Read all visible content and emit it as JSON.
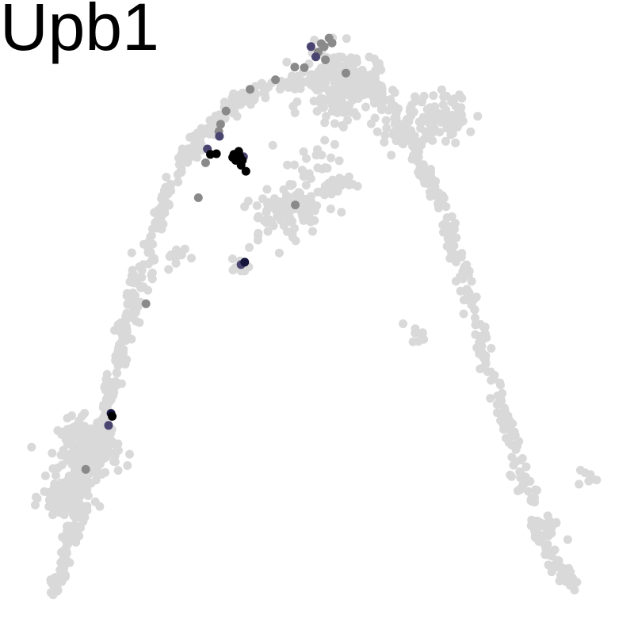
{
  "chart_data": {
    "type": "scatter",
    "title": "Upb1",
    "xlabel": "",
    "ylabel": "",
    "axes_visible": false,
    "grid": false,
    "legend": "none",
    "colors": {
      "background_cells": "#d9d9d9",
      "low_expression": "#8a8a8a",
      "mid_expression": "#4a4470",
      "high_expression": "#000000",
      "dark_blue_expression": "#14143c"
    },
    "xlim": [
      0,
      1
    ],
    "ylim": [
      0,
      1
    ],
    "background_trajectory": {
      "path": [
        [
          0.061,
          0.035
        ],
        [
          0.078,
          0.085
        ],
        [
          0.09,
          0.14
        ],
        [
          0.105,
          0.2
        ],
        [
          0.122,
          0.26
        ],
        [
          0.142,
          0.32
        ],
        [
          0.16,
          0.38
        ],
        [
          0.175,
          0.44
        ],
        [
          0.19,
          0.5
        ],
        [
          0.205,
          0.56
        ],
        [
          0.222,
          0.62
        ],
        [
          0.245,
          0.69
        ],
        [
          0.27,
          0.745
        ],
        [
          0.3,
          0.79
        ],
        [
          0.335,
          0.83
        ],
        [
          0.375,
          0.86
        ],
        [
          0.42,
          0.88
        ],
        [
          0.465,
          0.892
        ],
        [
          0.51,
          0.9
        ],
        [
          0.555,
          0.905
        ],
        [
          0.595,
          0.88
        ],
        [
          0.625,
          0.845
        ],
        [
          0.655,
          0.79
        ],
        [
          0.69,
          0.72
        ],
        [
          0.72,
          0.64
        ],
        [
          0.745,
          0.56
        ],
        [
          0.768,
          0.48
        ],
        [
          0.79,
          0.4
        ],
        [
          0.815,
          0.32
        ],
        [
          0.84,
          0.24
        ],
        [
          0.865,
          0.16
        ],
        [
          0.89,
          0.09
        ],
        [
          0.93,
          0.055
        ]
      ],
      "clusters": [
        {
          "x": 0.12,
          "y": 0.28,
          "sd": 0.025,
          "n": 160
        },
        {
          "x": 0.085,
          "y": 0.2,
          "sd": 0.02,
          "n": 110
        },
        {
          "x": 0.54,
          "y": 0.885,
          "sd": 0.03,
          "n": 200
        },
        {
          "x": 0.66,
          "y": 0.815,
          "sd": 0.025,
          "n": 70
        },
        {
          "x": 0.725,
          "y": 0.835,
          "sd": 0.02,
          "n": 40
        },
        {
          "x": 0.5,
          "y": 0.73,
          "sd": 0.03,
          "n": 60
        },
        {
          "x": 0.47,
          "y": 0.68,
          "sd": 0.02,
          "n": 40
        },
        {
          "x": 0.43,
          "y": 0.67,
          "sd": 0.025,
          "n": 40
        },
        {
          "x": 0.375,
          "y": 0.581,
          "sd": 0.008,
          "n": 12
        },
        {
          "x": 0.27,
          "y": 0.6,
          "sd": 0.01,
          "n": 12
        },
        {
          "x": 0.888,
          "y": 0.152,
          "sd": 0.01,
          "n": 12
        },
        {
          "x": 0.95,
          "y": 0.235,
          "sd": 0.008,
          "n": 8
        },
        {
          "x": 0.67,
          "y": 0.472,
          "sd": 0.008,
          "n": 8
        }
      ]
    },
    "expressing_cells": [
      {
        "x": 0.362,
        "y": 0.77,
        "level": "high"
      },
      {
        "x": 0.368,
        "y": 0.763,
        "level": "high"
      },
      {
        "x": 0.372,
        "y": 0.767,
        "level": "high"
      },
      {
        "x": 0.365,
        "y": 0.76,
        "level": "high"
      },
      {
        "x": 0.37,
        "y": 0.775,
        "level": "high"
      },
      {
        "x": 0.376,
        "y": 0.76,
        "level": "high"
      },
      {
        "x": 0.36,
        "y": 0.765,
        "level": "high"
      },
      {
        "x": 0.374,
        "y": 0.752,
        "level": "high"
      },
      {
        "x": 0.382,
        "y": 0.742,
        "level": "high"
      },
      {
        "x": 0.333,
        "y": 0.771,
        "level": "high"
      },
      {
        "x": 0.323,
        "y": 0.77,
        "level": "high"
      },
      {
        "x": 0.378,
        "y": 0.766,
        "level": "mid"
      },
      {
        "x": 0.318,
        "y": 0.779,
        "level": "mid"
      },
      {
        "x": 0.338,
        "y": 0.8,
        "level": "mid"
      },
      {
        "x": 0.49,
        "y": 0.949,
        "level": "mid"
      },
      {
        "x": 0.498,
        "y": 0.932,
        "level": "mid"
      },
      {
        "x": 0.38,
        "y": 0.591,
        "level": "dark_blue"
      },
      {
        "x": 0.374,
        "y": 0.587,
        "level": "mid"
      },
      {
        "x": 0.158,
        "y": 0.34,
        "level": "dark_blue"
      },
      {
        "x": 0.16,
        "y": 0.335,
        "level": "high"
      },
      {
        "x": 0.154,
        "y": 0.32,
        "level": "mid"
      },
      {
        "x": 0.315,
        "y": 0.756,
        "level": "low"
      },
      {
        "x": 0.337,
        "y": 0.808,
        "level": "low"
      },
      {
        "x": 0.34,
        "y": 0.82,
        "level": "low"
      },
      {
        "x": 0.349,
        "y": 0.842,
        "level": "low"
      },
      {
        "x": 0.502,
        "y": 0.94,
        "level": "low"
      },
      {
        "x": 0.507,
        "y": 0.954,
        "level": "low"
      },
      {
        "x": 0.512,
        "y": 0.949,
        "level": "low"
      },
      {
        "x": 0.52,
        "y": 0.963,
        "level": "low"
      },
      {
        "x": 0.525,
        "y": 0.955,
        "level": "low"
      },
      {
        "x": 0.479,
        "y": 0.914,
        "level": "low"
      },
      {
        "x": 0.463,
        "y": 0.915,
        "level": "low"
      },
      {
        "x": 0.514,
        "y": 0.927,
        "level": "low"
      },
      {
        "x": 0.548,
        "y": 0.905,
        "level": "low"
      },
      {
        "x": 0.431,
        "y": 0.894,
        "level": "low"
      },
      {
        "x": 0.389,
        "y": 0.878,
        "level": "low"
      },
      {
        "x": 0.464,
        "y": 0.686,
        "level": "low"
      },
      {
        "x": 0.216,
        "y": 0.522,
        "level": "low"
      },
      {
        "x": 0.116,
        "y": 0.247,
        "level": "low"
      },
      {
        "x": 0.303,
        "y": 0.698,
        "level": "low"
      }
    ]
  }
}
